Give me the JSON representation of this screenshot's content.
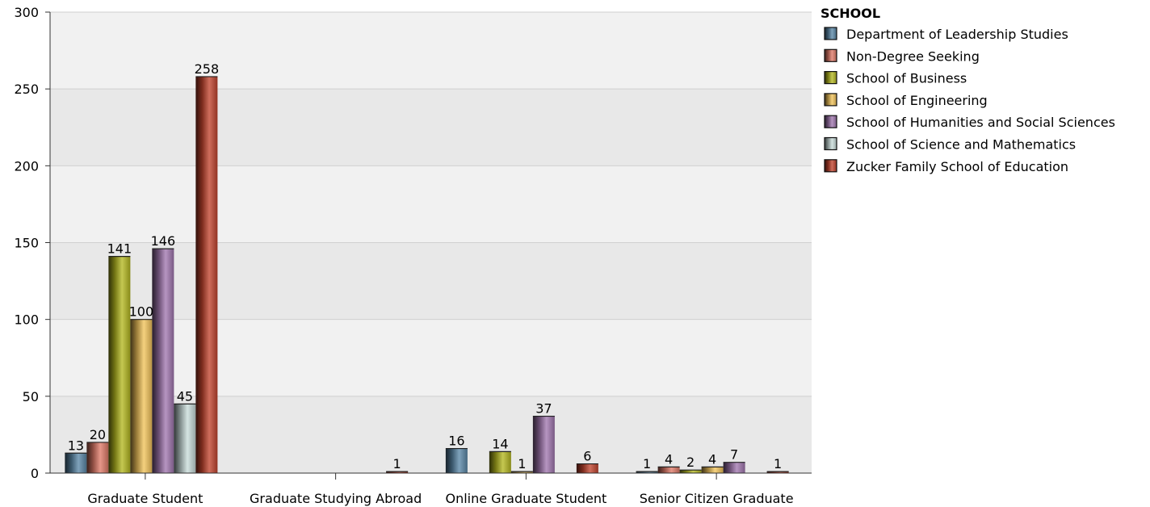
{
  "chart_data": {
    "type": "bar",
    "title": "",
    "xlabel": "",
    "ylabel": "",
    "ylim": [
      0,
      300
    ],
    "yticks": [
      0,
      50,
      100,
      150,
      200,
      250,
      300
    ],
    "grid": true,
    "legend_position": "top-right",
    "legend_title": "SCHOOL",
    "categories": [
      "Graduate Student",
      "Graduate Studying Abroad",
      "Online Graduate Student",
      "Senior Citizen Graduate"
    ],
    "series": [
      {
        "name": "Department of Leadership Studies",
        "color": "#5b88a8",
        "values": [
          13,
          null,
          16,
          1
        ]
      },
      {
        "name": "Non-Degree Seeking",
        "color": "#e07a68",
        "values": [
          20,
          null,
          null,
          4
        ]
      },
      {
        "name": "School of Business",
        "color": "#b5b820",
        "values": [
          141,
          null,
          14,
          2
        ]
      },
      {
        "name": "School of Engineering",
        "color": "#f2c45a",
        "values": [
          100,
          null,
          1,
          4
        ]
      },
      {
        "name": "School of Humanities and Social Sciences",
        "color": "#a177b0",
        "values": [
          146,
          null,
          37,
          7
        ]
      },
      {
        "name": "School of Science and Mathematics",
        "color": "#c9dcda",
        "values": [
          45,
          null,
          null,
          null
        ]
      },
      {
        "name": "Zucker Family School of Education",
        "color": "#c2442e",
        "values": [
          258,
          1,
          6,
          1
        ]
      }
    ]
  }
}
